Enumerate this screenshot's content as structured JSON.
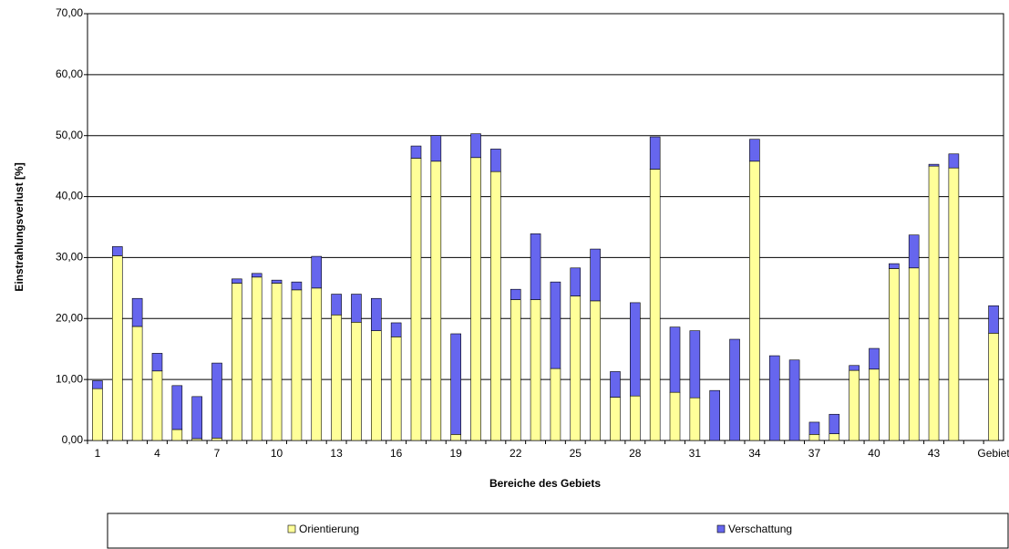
{
  "chart_data": {
    "type": "stacked_bar",
    "x_label": "Bereiche des Gebiets",
    "y_label": "Einstrahlungsverlust [%]",
    "categories": [
      "1",
      null,
      null,
      "4",
      null,
      null,
      "7",
      null,
      null,
      "10",
      null,
      null,
      "13",
      null,
      null,
      "16",
      null,
      null,
      "19",
      null,
      null,
      "22",
      null,
      null,
      "25",
      null,
      null,
      "28",
      null,
      null,
      "31",
      null,
      null,
      "34",
      null,
      null,
      "37",
      null,
      null,
      "40",
      null,
      null,
      "43",
      null,
      null,
      "Gebiet"
    ],
    "series": [
      {
        "name": "Orientierung",
        "color": "#ffff99",
        "values": [
          8.5,
          30.3,
          18.7,
          11.4,
          1.8,
          0.3,
          0.4,
          25.8,
          26.8,
          25.8,
          24.7,
          25.0,
          20.6,
          19.4,
          18.0,
          17.0,
          46.3,
          45.8,
          1.0,
          46.4,
          44.1,
          23.1,
          23.1,
          11.8,
          23.7,
          22.9,
          7.1,
          7.3,
          44.5,
          7.9,
          7.0,
          0,
          0,
          45.8,
          0,
          0,
          1.0,
          1.1,
          11.5,
          11.7,
          28.2,
          28.3,
          45.0,
          44.7,
          null,
          17.6
        ]
      },
      {
        "name": "Verschattung",
        "color": "#6666ee",
        "values": [
          1.3,
          1.5,
          4.6,
          2.9,
          7.2,
          6.9,
          12.3,
          0.7,
          0.6,
          0.5,
          1.3,
          5.2,
          3.4,
          4.6,
          5.3,
          2.3,
          2.0,
          4.2,
          16.5,
          3.9,
          3.7,
          1.7,
          10.8,
          14.2,
          4.6,
          8.5,
          4.2,
          15.3,
          5.3,
          10.7,
          11.0,
          8.2,
          16.6,
          3.6,
          13.9,
          13.2,
          2.0,
          3.2,
          0.8,
          3.4,
          0.8,
          5.4,
          0.3,
          2.3,
          null,
          4.5
        ]
      }
    ],
    "ylim": [
      0,
      70
    ],
    "yticks": [
      {
        "value": 0,
        "label": "0,00"
      },
      {
        "value": 10,
        "label": "10,00"
      },
      {
        "value": 20,
        "label": "20,00"
      },
      {
        "value": 30,
        "label": "30,00"
      },
      {
        "value": 40,
        "label": "40,00"
      },
      {
        "value": 50,
        "label": "50,00"
      },
      {
        "value": 60,
        "label": "60,00"
      },
      {
        "value": 70,
        "label": "70,00"
      }
    ],
    "grid": true,
    "legend": "bottom"
  }
}
